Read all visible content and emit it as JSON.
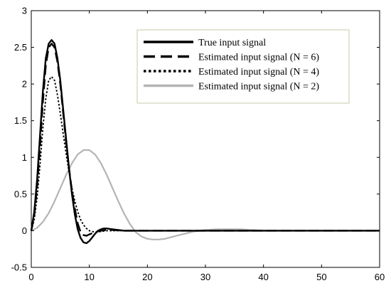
{
  "chart_data": {
    "type": "line",
    "title": "",
    "xlabel": "",
    "ylabel": "",
    "xlim": [
      0,
      60
    ],
    "ylim": [
      -0.5,
      3
    ],
    "xticks": [
      0,
      10,
      20,
      30,
      40,
      50,
      60
    ],
    "yticks": [
      -0.5,
      0,
      0.5,
      1,
      1.5,
      2,
      2.5,
      3
    ],
    "ytick_labels": [
      "-0.5",
      "0",
      "0.5",
      "1",
      "1.5",
      "2",
      "2.5",
      "3"
    ],
    "grid": false,
    "legend_position": "top-right",
    "series": [
      {
        "name": "True input signal",
        "color": "#000000",
        "style": "solid",
        "x": [
          0,
          0.5,
          1,
          1.5,
          2,
          2.5,
          3,
          3.5,
          4,
          4.5,
          5,
          5.5,
          6,
          6.5,
          7,
          7.5,
          8,
          8.5,
          9,
          9.5,
          10,
          10.5,
          11,
          11.5,
          12,
          12.5,
          13,
          14,
          15,
          16,
          18,
          20,
          25,
          30,
          40,
          50,
          60
        ],
        "y": [
          0,
          0.25,
          0.7,
          1.3,
          1.9,
          2.35,
          2.55,
          2.6,
          2.55,
          2.35,
          2.05,
          1.65,
          1.25,
          0.85,
          0.5,
          0.22,
          0.02,
          -0.1,
          -0.16,
          -0.17,
          -0.14,
          -0.09,
          -0.04,
          0.0,
          0.02,
          0.03,
          0.03,
          0.02,
          0.01,
          0.0,
          0.0,
          0.0,
          0.0,
          0.0,
          0.0,
          0.0,
          0.0
        ]
      },
      {
        "name": "Estimated input signal (N = 6)",
        "color": "#000000",
        "style": "dashed",
        "x": [
          0,
          0.5,
          1,
          1.5,
          2,
          2.5,
          3,
          3.5,
          4,
          4.5,
          5,
          5.5,
          6,
          6.5,
          7,
          7.5,
          8,
          8.5,
          9,
          9.5,
          10,
          11,
          12,
          13,
          14,
          16,
          20,
          30,
          40,
          50,
          60
        ],
        "y": [
          0,
          0.2,
          0.6,
          1.15,
          1.75,
          2.25,
          2.5,
          2.55,
          2.5,
          2.3,
          2.0,
          1.6,
          1.2,
          0.85,
          0.55,
          0.3,
          0.1,
          -0.02,
          -0.06,
          -0.07,
          -0.05,
          -0.02,
          0.0,
          0.01,
          0.01,
          0.0,
          0.0,
          0.0,
          0.0,
          0.0,
          0.0
        ]
      },
      {
        "name": "Estimated input signal (N = 4)",
        "color": "#000000",
        "style": "dotted",
        "x": [
          0,
          0.5,
          1,
          1.5,
          2,
          2.5,
          3,
          3.5,
          4,
          4.5,
          5,
          5.5,
          6,
          6.5,
          7,
          7.5,
          8,
          8.5,
          9,
          9.5,
          10,
          11,
          12,
          13,
          14,
          16,
          20,
          30,
          40,
          50,
          60
        ],
        "y": [
          0,
          0.15,
          0.45,
          0.9,
          1.4,
          1.8,
          2.05,
          2.1,
          2.05,
          1.85,
          1.6,
          1.32,
          1.05,
          0.8,
          0.58,
          0.4,
          0.26,
          0.15,
          0.08,
          0.03,
          0.0,
          -0.02,
          -0.01,
          0.0,
          0.0,
          0.0,
          0.0,
          0.0,
          0.0,
          0.0,
          0.0
        ]
      },
      {
        "name": "Estimated input signal (N = 2)",
        "color": "#b4b4b4",
        "style": "solid",
        "x": [
          0,
          1,
          2,
          3,
          4,
          5,
          6,
          7,
          8,
          9,
          10,
          11,
          12,
          13,
          14,
          15,
          16,
          17,
          18,
          19,
          20,
          21,
          22,
          23,
          24,
          25,
          26,
          27,
          28,
          30,
          32,
          34,
          36,
          38,
          40,
          45,
          50,
          60
        ],
        "y": [
          0,
          0.04,
          0.12,
          0.24,
          0.4,
          0.58,
          0.76,
          0.92,
          1.04,
          1.1,
          1.1,
          1.04,
          0.92,
          0.76,
          0.58,
          0.4,
          0.23,
          0.09,
          -0.02,
          -0.08,
          -0.11,
          -0.12,
          -0.12,
          -0.11,
          -0.09,
          -0.07,
          -0.05,
          -0.03,
          -0.01,
          0.01,
          0.02,
          0.02,
          0.02,
          0.01,
          0.0,
          0.0,
          0.0,
          0.0
        ]
      }
    ]
  }
}
